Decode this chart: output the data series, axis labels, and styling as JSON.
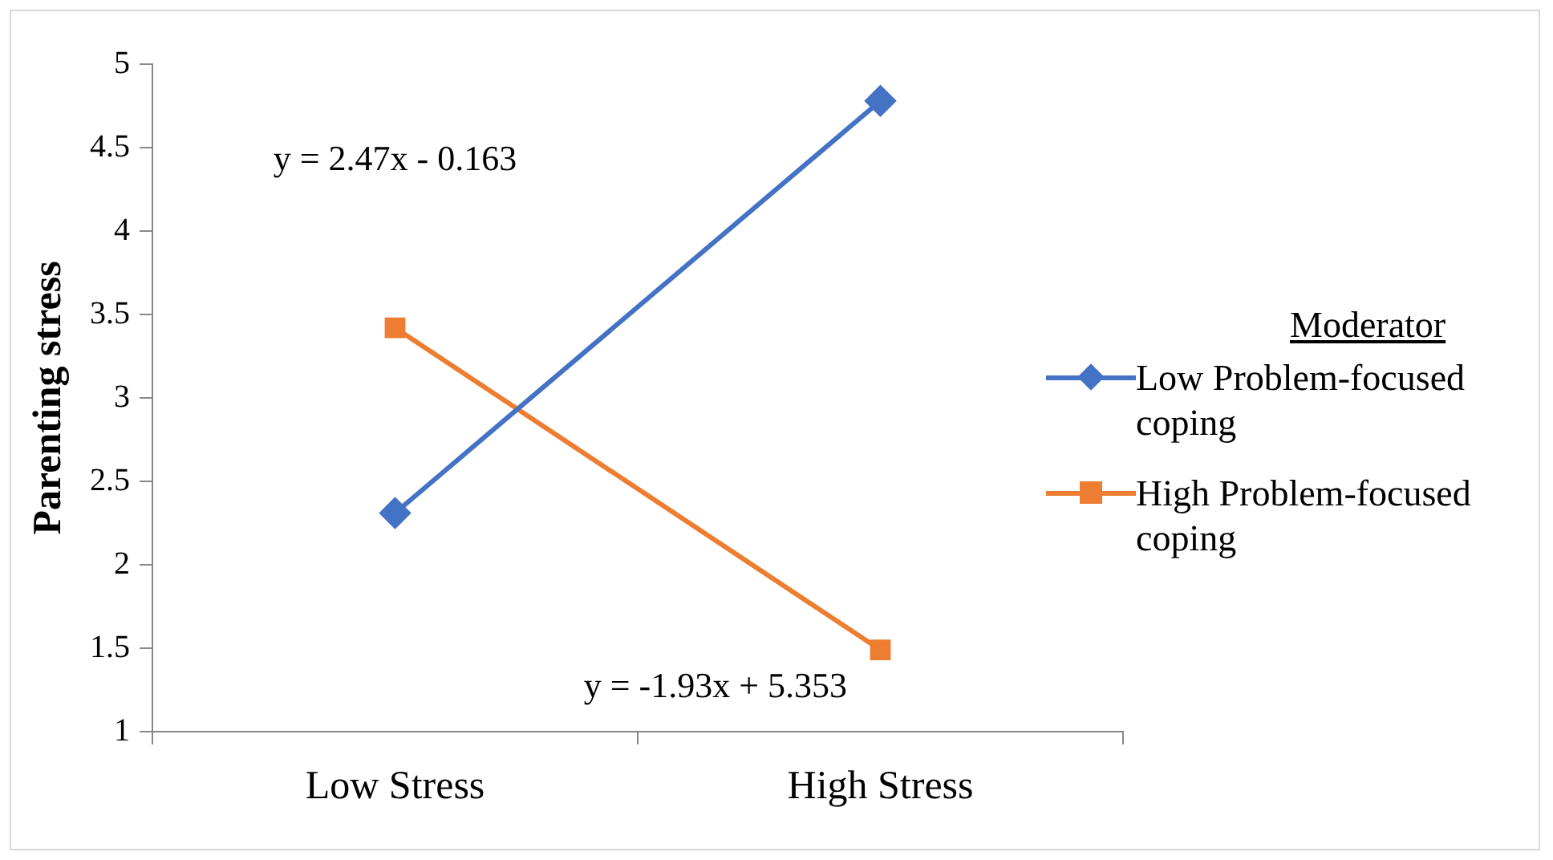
{
  "chart_data": {
    "type": "line",
    "ylabel": "Parenting stress",
    "legend_title": "Moderator",
    "categories": [
      "Low Stress",
      "High Stress"
    ],
    "series": [
      {
        "name": "Low Problem-focused coping",
        "color": "#4472c4",
        "marker": "diamond",
        "values": [
          2.31,
          4.78
        ]
      },
      {
        "name": "High Problem-focused coping",
        "color": "#ed7d31",
        "marker": "square",
        "values": [
          3.42,
          1.49
        ]
      }
    ],
    "ylim": [
      1,
      5
    ],
    "yticks": [
      1,
      1.5,
      2,
      2.5,
      3,
      3.5,
      4,
      4.5,
      5
    ],
    "grid": false,
    "legend": "right",
    "annotations": [
      "y = 2.47x - 0.163",
      "y = -1.93x + 5.353"
    ]
  }
}
